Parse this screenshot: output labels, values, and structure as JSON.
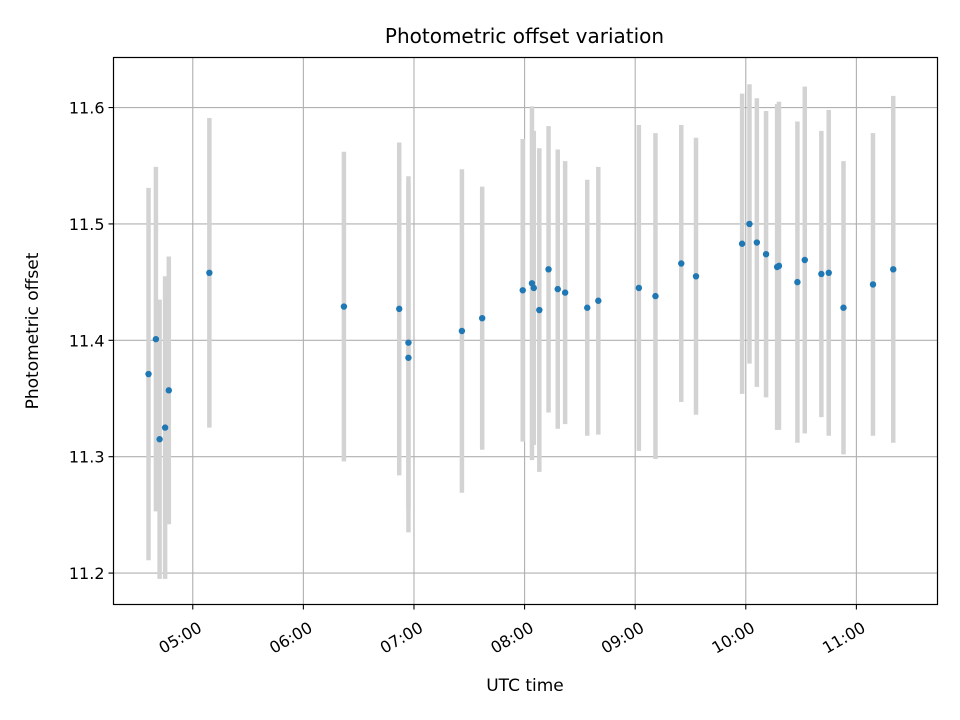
{
  "chart_data": {
    "type": "scatter",
    "title": "Photometric offset variation",
    "xlabel": "UTC time",
    "ylabel": "Photometric offset",
    "xlim": [
      "04:17",
      "11:44"
    ],
    "ylim": [
      11.173,
      11.643
    ],
    "x_ticks": [
      "05:00",
      "06:00",
      "07:00",
      "08:00",
      "09:00",
      "10:00",
      "11:00"
    ],
    "y_ticks": [
      11.2,
      11.3,
      11.4,
      11.5,
      11.6
    ],
    "grid": true,
    "colors": {
      "point": "#1f77b4",
      "errorbar": "#d3d3d3",
      "grid": "#b0b0b0",
      "axes": "#000000"
    },
    "series": [
      {
        "points": [
          {
            "t": "04:36",
            "y": 11.371,
            "err": 0.16
          },
          {
            "t": "04:40",
            "y": 11.401,
            "err": 0.148
          },
          {
            "t": "04:42",
            "y": 11.315,
            "err": 0.12
          },
          {
            "t": "04:45",
            "y": 11.325,
            "err": 0.13
          },
          {
            "t": "04:47",
            "y": 11.357,
            "err": 0.115
          },
          {
            "t": "05:09",
            "y": 11.458,
            "err": 0.133
          },
          {
            "t": "06:22",
            "y": 11.429,
            "err": 0.133
          },
          {
            "t": "06:52",
            "y": 11.427,
            "err": 0.143
          },
          {
            "t": "06:57",
            "y": 11.398,
            "err": 0.143
          },
          {
            "t": "06:57",
            "y": 11.385,
            "err": 0.15
          },
          {
            "t": "07:26",
            "y": 11.408,
            "err": 0.139
          },
          {
            "t": "07:37",
            "y": 11.419,
            "err": 0.113
          },
          {
            "t": "07:59",
            "y": 11.443,
            "err": 0.13
          },
          {
            "t": "08:04",
            "y": 11.449,
            "err": 0.152
          },
          {
            "t": "08:05",
            "y": 11.445,
            "err": 0.135
          },
          {
            "t": "08:08",
            "y": 11.426,
            "err": 0.139
          },
          {
            "t": "08:13",
            "y": 11.461,
            "err": 0.123
          },
          {
            "t": "08:18",
            "y": 11.444,
            "err": 0.12
          },
          {
            "t": "08:22",
            "y": 11.441,
            "err": 0.113
          },
          {
            "t": "08:34",
            "y": 11.428,
            "err": 0.11
          },
          {
            "t": "08:40",
            "y": 11.434,
            "err": 0.115
          },
          {
            "t": "09:02",
            "y": 11.445,
            "err": 0.14
          },
          {
            "t": "09:11",
            "y": 11.438,
            "err": 0.14
          },
          {
            "t": "09:25",
            "y": 11.466,
            "err": 0.119
          },
          {
            "t": "09:33",
            "y": 11.455,
            "err": 0.119
          },
          {
            "t": "09:58",
            "y": 11.483,
            "err": 0.129
          },
          {
            "t": "10:02",
            "y": 11.5,
            "err": 0.12
          },
          {
            "t": "10:06",
            "y": 11.484,
            "err": 0.124
          },
          {
            "t": "10:11",
            "y": 11.474,
            "err": 0.123
          },
          {
            "t": "10:17",
            "y": 11.463,
            "err": 0.14
          },
          {
            "t": "10:18",
            "y": 11.464,
            "err": 0.141
          },
          {
            "t": "10:28",
            "y": 11.45,
            "err": 0.138
          },
          {
            "t": "10:32",
            "y": 11.469,
            "err": 0.149
          },
          {
            "t": "10:41",
            "y": 11.457,
            "err": 0.123
          },
          {
            "t": "10:45",
            "y": 11.458,
            "err": 0.14
          },
          {
            "t": "10:53",
            "y": 11.428,
            "err": 0.126
          },
          {
            "t": "11:09",
            "y": 11.448,
            "err": 0.13
          },
          {
            "t": "11:20",
            "y": 11.461,
            "err": 0.149
          }
        ]
      }
    ]
  }
}
